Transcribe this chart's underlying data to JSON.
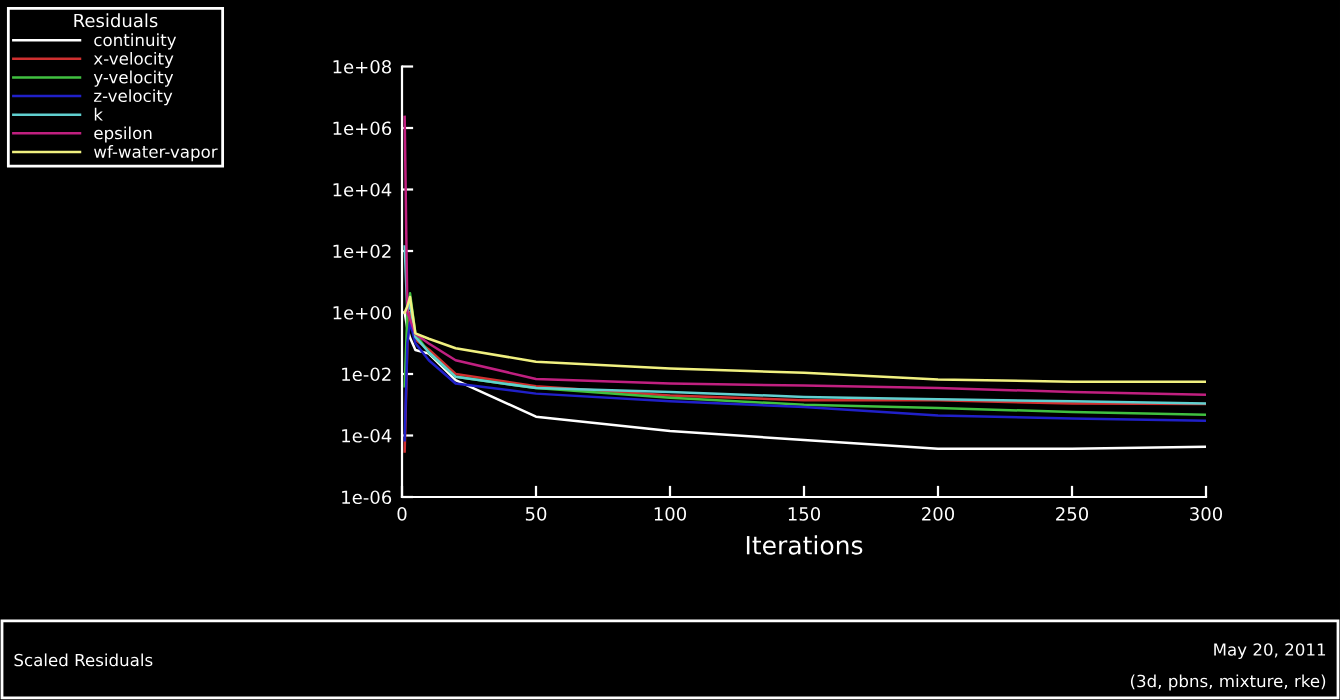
{
  "chart_data": {
    "type": "line",
    "xlabel": "Iterations",
    "legend_title": "Residuals",
    "legend": "top left",
    "log": true,
    "grid": false,
    "marker": "none",
    "line_style": "solid",
    "annotations": [
      "Scaled Residuals",
      "May 20, 2011",
      "(3d, pbns, mixture, rke)"
    ],
    "x": [
      1,
      2,
      3,
      5,
      10,
      20,
      50,
      100,
      150,
      200,
      250,
      300
    ],
    "xlim": [
      0,
      300
    ],
    "xticks": [
      0,
      50,
      100,
      150,
      200,
      250,
      300
    ],
    "ylim": [
      1e-06,
      100000000.0
    ],
    "yticks": [
      {
        "value": 1e-06,
        "label": "1e-06"
      },
      {
        "value": 0.0001,
        "label": "1e-04"
      },
      {
        "value": 0.01,
        "label": "1e-02"
      },
      {
        "value": 1,
        "label": "1e+00"
      },
      {
        "value": 100,
        "label": "1e+02"
      },
      {
        "value": 10000,
        "label": "1e+04"
      },
      {
        "value": 1000000,
        "label": "1e+06"
      },
      {
        "value": 100000000,
        "label": "1e+08"
      }
    ],
    "series": [
      {
        "name": "continuity",
        "color": "#ffffff",
        "values": [
          1,
          0.3,
          0.15,
          0.06,
          0.046,
          0.0063,
          0.00041,
          0.00014,
          7.1e-05,
          3.7e-05,
          3.7e-05,
          4.3e-05
        ]
      },
      {
        "name": "x-velocity",
        "color": "#d03030",
        "values": [
          3e-05,
          0.1,
          1,
          0.13,
          0.063,
          0.01,
          0.004,
          0.002,
          0.0014,
          0.0014,
          0.0011,
          0.00105
        ]
      },
      {
        "name": "y-velocity",
        "color": "#40c040",
        "values": [
          0.004,
          1,
          4.2,
          0.2,
          0.05,
          0.0081,
          0.0035,
          0.0017,
          0.001,
          0.00078,
          0.00058,
          0.00047
        ]
      },
      {
        "name": "z-velocity",
        "color": "#2020c8",
        "values": [
          7e-05,
          0.1,
          0.5,
          0.1,
          0.028,
          0.0049,
          0.0023,
          0.0013,
          0.00085,
          0.00045,
          0.00036,
          0.0003
        ]
      },
      {
        "name": "k",
        "color": "#60d0d0",
        "values": [
          140,
          1,
          2,
          0.16,
          0.051,
          0.0081,
          0.0035,
          0.0026,
          0.0018,
          0.0015,
          0.0013,
          0.0011
        ]
      },
      {
        "name": "epsilon",
        "color": "#c02080",
        "values": [
          2300000.0,
          1,
          0.6,
          0.2,
          0.098,
          0.028,
          0.0069,
          0.0049,
          0.0042,
          0.0035,
          0.0026,
          0.0021
        ]
      },
      {
        "name": "wf-water-vapor",
        "color": "#f0f080",
        "values": [
          1,
          1.6,
          3.2,
          0.21,
          0.14,
          0.069,
          0.025,
          0.015,
          0.011,
          0.0066,
          0.0056,
          0.0056
        ]
      }
    ]
  }
}
